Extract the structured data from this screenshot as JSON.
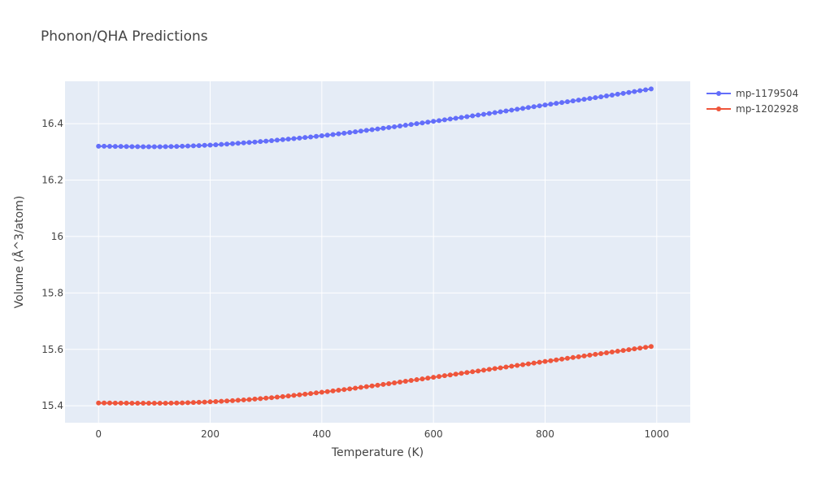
{
  "colors": {
    "plot_background": "#E5ECF6",
    "grid": "#ffffff",
    "text": "#444444"
  },
  "chart_data": {
    "type": "line",
    "title": "Phonon/QHA Predictions",
    "xlabel": "Temperature (K)",
    "ylabel": "Volume (Å^3/atom)",
    "xlim": [
      -60,
      1060
    ],
    "ylim": [
      15.34,
      16.55
    ],
    "xticks": [
      0,
      200,
      400,
      600,
      800,
      1000
    ],
    "xtick_labels": [
      "0",
      "200",
      "400",
      "600",
      "800",
      "1000"
    ],
    "yticks": [
      15.4,
      15.6,
      15.8,
      16.0,
      16.2,
      16.4
    ],
    "ytick_labels": [
      "15.4",
      "15.6",
      "15.8",
      "16",
      "16.2",
      "16.4"
    ],
    "grid": true,
    "legend_position": "top-right",
    "markers": true,
    "series": [
      {
        "name": "mp-1179504",
        "color": "#636EFA",
        "x": [
          0,
          100,
          200,
          300,
          400,
          500,
          600,
          700,
          800,
          900,
          990
        ],
        "y": [
          16.32,
          16.318,
          16.324,
          16.338,
          16.357,
          16.381,
          16.408,
          16.436,
          16.466,
          16.495,
          16.523
        ]
      },
      {
        "name": "mp-1202928",
        "color": "#EF553B",
        "x": [
          0,
          100,
          200,
          300,
          400,
          500,
          600,
          700,
          800,
          900,
          990
        ],
        "y": [
          15.41,
          15.409,
          15.414,
          15.427,
          15.448,
          15.473,
          15.501,
          15.529,
          15.557,
          15.585,
          15.61
        ]
      }
    ]
  }
}
